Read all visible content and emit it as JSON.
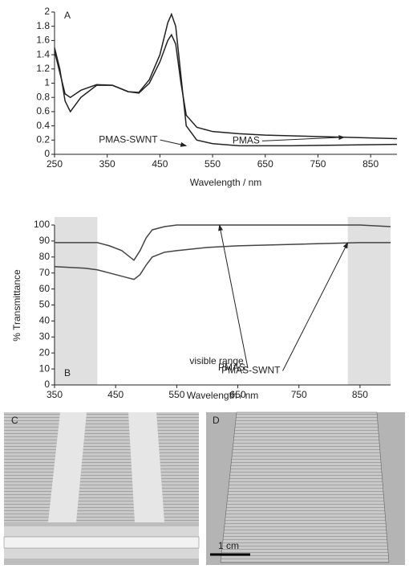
{
  "chart_data": [
    {
      "type": "line",
      "panel_label": "A",
      "x_label": "Wavelength / nm",
      "x": [
        250,
        260,
        270,
        280,
        300,
        330,
        360,
        390,
        410,
        430,
        450,
        465,
        472,
        480,
        490,
        500,
        520,
        550,
        600,
        650,
        700,
        800,
        900
      ],
      "series": [
        {
          "name": "PMAS",
          "color": "#222222",
          "values": [
            1.5,
            1.2,
            0.75,
            0.6,
            0.8,
            0.97,
            0.97,
            0.88,
            0.87,
            1.05,
            1.4,
            1.85,
            1.97,
            1.8,
            1.1,
            0.4,
            0.2,
            0.15,
            0.12,
            0.12,
            0.12,
            0.13,
            0.14
          ]
        },
        {
          "name": "PMAS-SWNT",
          "color": "#222222",
          "values": [
            1.45,
            1.15,
            0.85,
            0.8,
            0.9,
            0.98,
            0.97,
            0.88,
            0.86,
            1.0,
            1.3,
            1.6,
            1.68,
            1.55,
            1.0,
            0.55,
            0.38,
            0.32,
            0.29,
            0.27,
            0.26,
            0.24,
            0.22
          ]
        }
      ],
      "xlim": [
        250,
        900
      ],
      "xticks": [
        250,
        350,
        450,
        550,
        650,
        750,
        850
      ],
      "ylim": [
        0,
        2
      ],
      "yticks": [
        0,
        0.2,
        0.4,
        0.6,
        0.8,
        1,
        1.2,
        1.4,
        1.6,
        1.8,
        2
      ]
    },
    {
      "type": "line",
      "panel_label": "B",
      "x_label": "Wavelength / nm",
      "y_label": "% Transmittance",
      "annotation": "visible range",
      "shaded": [
        [
          350,
          420
        ],
        [
          830,
          900
        ]
      ],
      "x": [
        350,
        400,
        420,
        440,
        460,
        470,
        480,
        490,
        500,
        510,
        530,
        550,
        600,
        650,
        750,
        850,
        900
      ],
      "series": [
        {
          "name": "PMAS",
          "color": "#444444",
          "values": [
            89,
            89,
            89,
            87,
            84,
            81,
            78,
            84,
            92,
            97,
            99,
            100,
            100,
            100,
            100,
            100,
            99
          ]
        },
        {
          "name": "PMAS-SWNT",
          "color": "#444444",
          "values": [
            74,
            73,
            72,
            70,
            68,
            67,
            66,
            69,
            75,
            80,
            83,
            84,
            86,
            87,
            88,
            89,
            89
          ]
        }
      ],
      "xlim": [
        350,
        900
      ],
      "xticks": [
        350,
        450,
        550,
        650,
        750,
        850
      ],
      "ylim": [
        0,
        100
      ],
      "yticks": [
        0,
        10,
        20,
        30,
        40,
        50,
        60,
        70,
        80,
        90,
        100
      ]
    }
  ],
  "photos": [
    {
      "label": "C"
    },
    {
      "label": "D",
      "scale_bar": "1 cm"
    }
  ]
}
